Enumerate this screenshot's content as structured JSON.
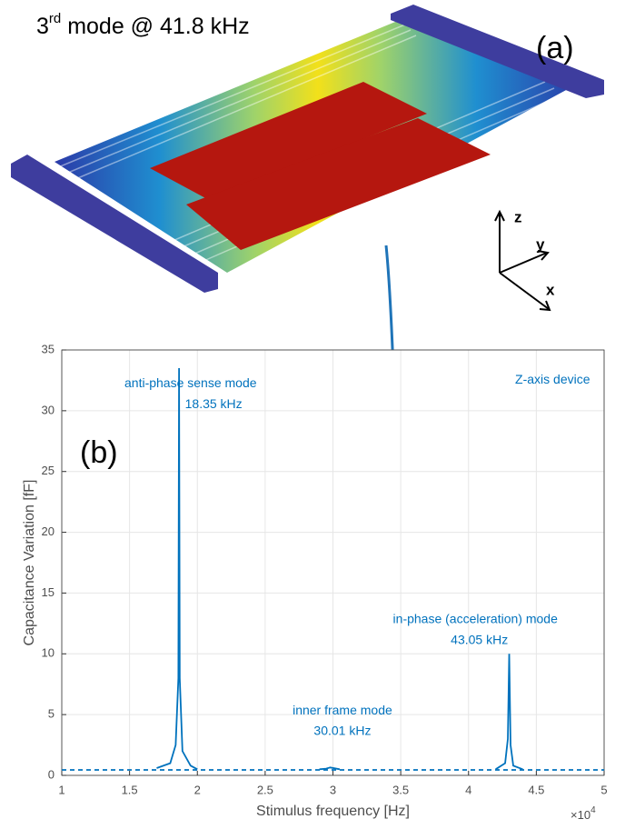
{
  "title": {
    "main": "3",
    "sup": "rd",
    "rest": " mode @ 41.8 kHz"
  },
  "panel_a": "(a)",
  "axes_triad": {
    "z": "z",
    "y": "y",
    "x": "x"
  },
  "chart_data": {
    "type": "line",
    "panel": "(b)",
    "xlabel": "Stimulus frequency [Hz]",
    "ylabel": "Capacitance Variation [fF]",
    "x_multiplier": {
      "base": "×10",
      "power": "4"
    },
    "xlim": [
      1,
      5
    ],
    "xticks": [
      1,
      1.5,
      2,
      2.5,
      3,
      3.5,
      4,
      4.5,
      5
    ],
    "ylim": [
      0,
      35
    ],
    "yticks": [
      0,
      5,
      10,
      15,
      20,
      25,
      30,
      35
    ],
    "grid": true,
    "series": [
      {
        "color": "#0072bd",
        "style": "solid",
        "x": [
          1.7,
          1.8,
          1.84,
          1.86,
          1.865,
          1.87,
          1.89,
          1.95,
          2.0,
          null,
          2.9,
          2.95,
          2.98,
          3.05,
          null,
          4.2,
          4.27,
          4.29,
          4.3,
          4.31,
          4.33,
          4.4
        ],
        "values": [
          0.6,
          1.0,
          2.5,
          8,
          33.5,
          8,
          2.0,
          0.8,
          0.5,
          null,
          0.5,
          0.55,
          0.65,
          0.5,
          null,
          0.5,
          1.0,
          3,
          10,
          2.5,
          0.8,
          0.5
        ]
      },
      {
        "color": "#0072bd",
        "style": "dashed",
        "x": [
          1,
          5
        ],
        "values": [
          0.45,
          0.45
        ]
      }
    ],
    "annotations": [
      {
        "text": "anti-phase sense mode",
        "x": 1.95,
        "y": 32.2
      },
      {
        "text": "18.35 kHz",
        "x": 2.12,
        "y": 30.5
      },
      {
        "text": "Z-axis device",
        "x": 4.62,
        "y": 32.5
      },
      {
        "text": "in-phase (acceleration) mode",
        "x": 4.05,
        "y": 12.8
      },
      {
        "text": "43.05 kHz",
        "x": 4.08,
        "y": 11.1
      },
      {
        "text": "inner frame mode",
        "x": 3.07,
        "y": 5.3
      },
      {
        "text": "30.01 kHz",
        "x": 3.07,
        "y": 3.6
      }
    ]
  }
}
